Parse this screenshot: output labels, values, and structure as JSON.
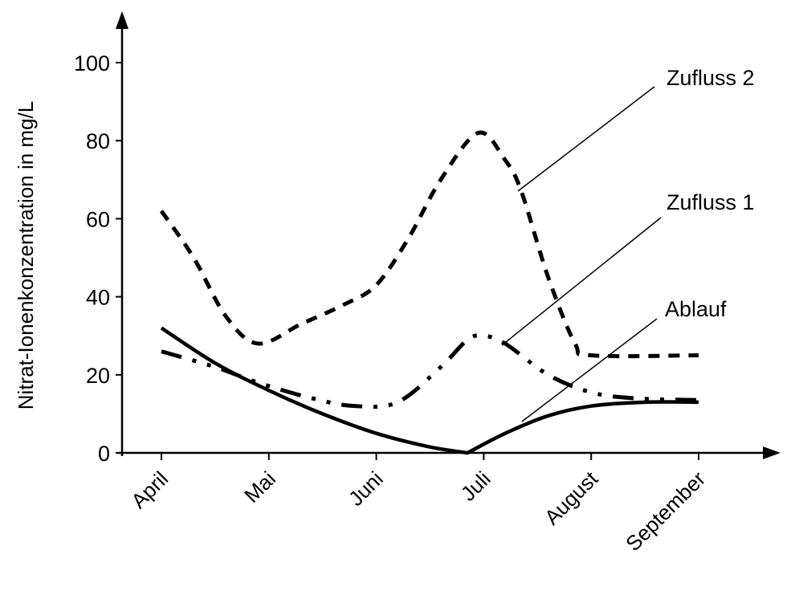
{
  "chart_data": {
    "type": "line",
    "title": "",
    "xlabel": "",
    "ylabel": "Nitrat-Ionenkonzentration in mg/L",
    "ylim": [
      0,
      110
    ],
    "yticks": [
      0,
      20,
      40,
      60,
      80,
      100
    ],
    "categories": [
      "April",
      "Mai",
      "Juni",
      "Juli",
      "August",
      "September"
    ],
    "grid": false,
    "legend": "inline labels with leader lines",
    "series": [
      {
        "name": "Zufluss 2",
        "style": "dashed",
        "points": [
          {
            "x": 0.0,
            "y": 62
          },
          {
            "x": 0.3,
            "y": 50
          },
          {
            "x": 0.6,
            "y": 35
          },
          {
            "x": 0.9,
            "y": 28
          },
          {
            "x": 1.3,
            "y": 33
          },
          {
            "x": 1.7,
            "y": 38
          },
          {
            "x": 2.0,
            "y": 43
          },
          {
            "x": 2.3,
            "y": 55
          },
          {
            "x": 2.6,
            "y": 70
          },
          {
            "x": 2.95,
            "y": 82
          },
          {
            "x": 3.2,
            "y": 75
          },
          {
            "x": 3.35,
            "y": 67
          },
          {
            "x": 3.6,
            "y": 45
          },
          {
            "x": 3.85,
            "y": 28
          },
          {
            "x": 4.0,
            "y": 25
          },
          {
            "x": 5.0,
            "y": 25
          }
        ]
      },
      {
        "name": "Zufluss 1",
        "style": "dash-dot",
        "points": [
          {
            "x": 0.0,
            "y": 26
          },
          {
            "x": 0.5,
            "y": 22
          },
          {
            "x": 0.9,
            "y": 18
          },
          {
            "x": 1.4,
            "y": 14
          },
          {
            "x": 1.8,
            "y": 12
          },
          {
            "x": 2.2,
            "y": 13
          },
          {
            "x": 2.6,
            "y": 22
          },
          {
            "x": 2.85,
            "y": 29
          },
          {
            "x": 3.0,
            "y": 30
          },
          {
            "x": 3.2,
            "y": 28
          },
          {
            "x": 3.6,
            "y": 20
          },
          {
            "x": 4.0,
            "y": 15.5
          },
          {
            "x": 4.4,
            "y": 14
          },
          {
            "x": 5.0,
            "y": 13.5
          }
        ]
      },
      {
        "name": "Ablauf",
        "style": "solid",
        "points": [
          {
            "x": 0.0,
            "y": 32
          },
          {
            "x": 0.5,
            "y": 23
          },
          {
            "x": 1.0,
            "y": 16
          },
          {
            "x": 1.5,
            "y": 10
          },
          {
            "x": 2.0,
            "y": 5
          },
          {
            "x": 2.5,
            "y": 1.5
          },
          {
            "x": 2.85,
            "y": 0
          },
          {
            "x": 3.2,
            "y": 5
          },
          {
            "x": 3.6,
            "y": 9.5
          },
          {
            "x": 4.0,
            "y": 12
          },
          {
            "x": 4.5,
            "y": 13
          },
          {
            "x": 5.0,
            "y": 13
          }
        ]
      }
    ],
    "annotations": [
      {
        "text": "Zufluss 2",
        "points_to_series": "Zufluss 2"
      },
      {
        "text": "Zufluss 1",
        "points_to_series": "Zufluss 1"
      },
      {
        "text": "Ablauf",
        "points_to_series": "Ablauf"
      }
    ]
  },
  "axis": {
    "y_title": "Nitrat-Ionenkonzentration in mg/L",
    "y_ticks": [
      "0",
      "20",
      "40",
      "60",
      "80",
      "100"
    ],
    "x_ticks": [
      "April",
      "Mai",
      "Juni",
      "Juli",
      "August",
      "September"
    ]
  },
  "labels": {
    "zufluss2": "Zufluss 2",
    "zufluss1": "Zufluss 1",
    "ablauf": "Ablauf"
  }
}
